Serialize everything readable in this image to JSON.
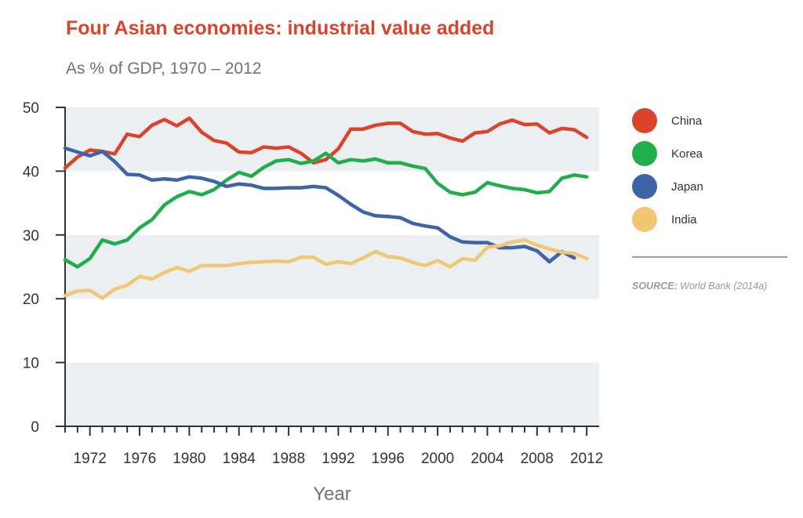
{
  "colors": {
    "title": "#d9442b",
    "band": "#eceff2",
    "axis": "#333333",
    "China": "#d9442b",
    "Korea": "#1fae4b",
    "Japan": "#3d64a6",
    "India": "#f0c772"
  },
  "legend": {
    "items": [
      {
        "label": "China"
      },
      {
        "label": "Korea"
      },
      {
        "label": "Japan"
      },
      {
        "label": "India"
      }
    ]
  },
  "source": {
    "label": "SOURCE:",
    "text": "World Bank (2014a)"
  },
  "chart_data": {
    "type": "line",
    "title": "Four Asian economies: industrial value added",
    "subtitle": "As % of GDP, 1970 – 2012",
    "xlabel": "Year",
    "ylabel": "",
    "xlim": [
      1970,
      2013
    ],
    "ylim": [
      0,
      50
    ],
    "yticks": [
      0,
      10,
      20,
      30,
      40,
      50
    ],
    "xticks": [
      1972,
      1976,
      1980,
      1984,
      1988,
      1992,
      1996,
      2000,
      2004,
      2008,
      2012
    ],
    "bands": [
      [
        40,
        50
      ],
      [
        20,
        30
      ],
      [
        0,
        10
      ]
    ],
    "legend_position": "right",
    "x": [
      1970,
      1971,
      1972,
      1973,
      1974,
      1975,
      1976,
      1977,
      1978,
      1979,
      1980,
      1981,
      1982,
      1983,
      1984,
      1985,
      1986,
      1987,
      1988,
      1989,
      1990,
      1991,
      1992,
      1993,
      1994,
      1995,
      1996,
      1997,
      1998,
      1999,
      2000,
      2001,
      2002,
      2003,
      2004,
      2005,
      2006,
      2007,
      2008,
      2009,
      2010,
      2011,
      2012
    ],
    "series": [
      {
        "name": "China",
        "values": [
          40.5,
          42.2,
          43.3,
          43.1,
          42.7,
          45.8,
          45.4,
          47.2,
          48.1,
          47.1,
          48.3,
          46.1,
          44.8,
          44.4,
          43.0,
          42.9,
          43.8,
          43.6,
          43.8,
          42.8,
          41.3,
          41.8,
          43.5,
          46.6,
          46.6,
          47.2,
          47.5,
          47.5,
          46.2,
          45.8,
          45.9,
          45.2,
          44.7,
          46.0,
          46.2,
          47.4,
          48.0,
          47.3,
          47.4,
          46.0,
          46.7,
          46.5,
          45.3
        ]
      },
      {
        "name": "Korea",
        "values": [
          26.1,
          25.0,
          26.3,
          29.2,
          28.6,
          29.2,
          31.1,
          32.4,
          34.7,
          36.0,
          36.8,
          36.3,
          37.1,
          38.6,
          39.8,
          39.2,
          40.6,
          41.6,
          41.8,
          41.2,
          41.6,
          42.8,
          41.3,
          41.8,
          41.6,
          41.9,
          41.3,
          41.3,
          40.8,
          40.4,
          38.1,
          36.7,
          36.3,
          36.7,
          38.2,
          37.7,
          37.3,
          37.1,
          36.6,
          36.8,
          38.9,
          39.4,
          39.1
        ]
      },
      {
        "name": "Japan",
        "values": [
          43.6,
          43.0,
          42.4,
          43.1,
          41.5,
          39.5,
          39.4,
          38.6,
          38.8,
          38.6,
          39.1,
          38.9,
          38.4,
          37.6,
          38.0,
          37.8,
          37.3,
          37.3,
          37.4,
          37.4,
          37.6,
          37.4,
          36.2,
          34.8,
          33.6,
          33.0,
          32.9,
          32.7,
          31.8,
          31.4,
          31.1,
          29.7,
          28.9,
          28.8,
          28.8,
          28.0,
          28.0,
          28.2,
          27.5,
          25.8,
          27.4,
          26.4,
          null
        ]
      },
      {
        "name": "India",
        "values": [
          20.5,
          21.2,
          21.3,
          20.1,
          21.5,
          22.1,
          23.5,
          23.1,
          24.1,
          24.9,
          24.3,
          25.2,
          25.2,
          25.2,
          25.5,
          25.7,
          25.8,
          25.9,
          25.8,
          26.5,
          26.5,
          25.4,
          25.8,
          25.5,
          26.4,
          27.4,
          26.6,
          26.4,
          25.7,
          25.2,
          26.0,
          25.0,
          26.3,
          26.0,
          28.1,
          28.3,
          28.9,
          29.2,
          28.4,
          27.8,
          27.3,
          27.1,
          26.3
        ]
      }
    ]
  }
}
